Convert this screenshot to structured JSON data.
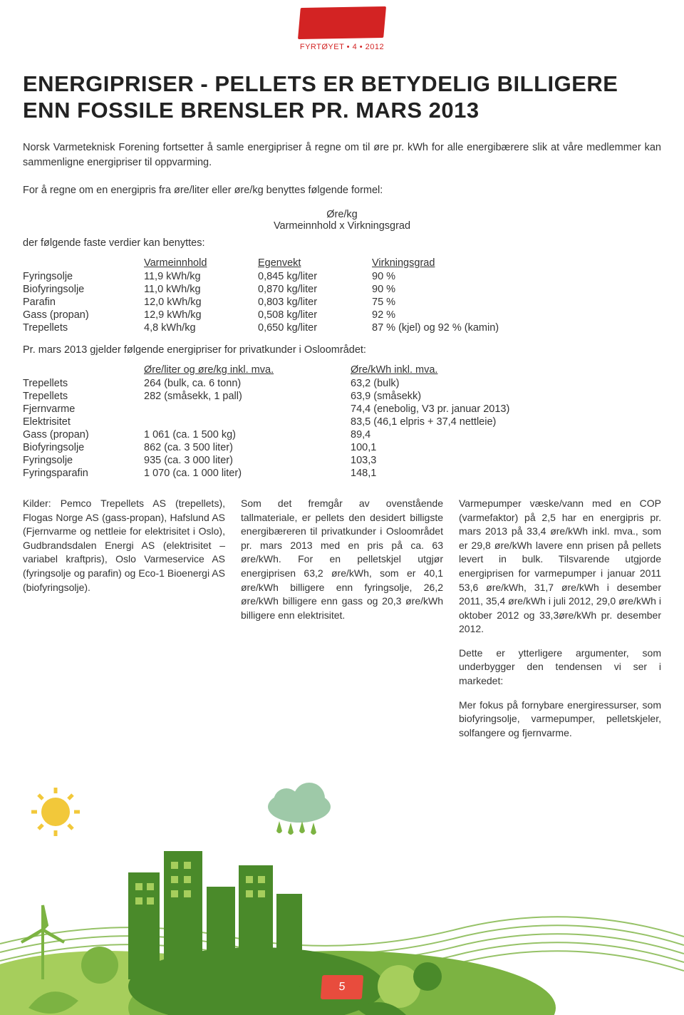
{
  "header": {
    "sub": "FYRTØYET • 4 • 2012"
  },
  "title": "ENERGIPRISER - PELLETS ER BETYDELIG BILLIGERE ENN FOSSILE BRENSLER PR. MARS 2013",
  "intro": "Norsk Varmeteknisk Forening fortsetter å samle energipriser å regne om til øre pr. kWh for alle energibærere slik at våre medlemmer kan sammenligne energipriser til oppvarming.",
  "formula_intro": "For å regne om en energipris fra øre/liter eller øre/kg benyttes følgende formel:",
  "formula_top": "Øre/kg",
  "formula_bottom": "Varmeinnhold x Virkningsgrad",
  "values_intro": "der følgende faste verdier kan benyttes:",
  "table1": {
    "headers": [
      "",
      "Varmeinnhold",
      "Egenvekt",
      "Virkningsgrad"
    ],
    "rows": [
      [
        "Fyringsolje",
        "11,9 kWh/kg",
        "0,845 kg/liter",
        "90 %"
      ],
      [
        "Biofyringsolje",
        "11,0 kWh/kg",
        "0,870 kg/liter",
        "90 %"
      ],
      [
        "Parafin",
        "12,0 kWh/kg",
        "0,803 kg/liter",
        "75 %"
      ],
      [
        "Gass (propan)",
        "12,9 kWh/kg",
        "0,508 kg/liter",
        "92 %"
      ],
      [
        "Trepellets",
        "4,8 kWh/kg",
        "0,650 kg/liter",
        "87 % (kjel) og 92 % (kamin)"
      ]
    ]
  },
  "table2_intro": "Pr. mars 2013 gjelder følgende energipriser for privatkunder i Osloområdet:",
  "table2": {
    "headers": [
      "",
      "Øre/liter og øre/kg inkl. mva.",
      "Øre/kWh inkl. mva."
    ],
    "rows": [
      [
        "Trepellets",
        "264 (bulk, ca. 6 tonn)",
        "63,2 (bulk)"
      ],
      [
        "Trepellets",
        "282 (småsekk, 1 pall)",
        "63,9 (småsekk)"
      ],
      [
        "Fjernvarme",
        "",
        "74,4 (enebolig, V3 pr. januar 2013)"
      ],
      [
        "Elektrisitet",
        "",
        "83,5 (46,1 elpris + 37,4 nettleie)"
      ],
      [
        "Gass (propan)",
        "1 061 (ca. 1 500 kg)",
        "89,4"
      ],
      [
        "Biofyringsolje",
        "862 (ca. 3 500 liter)",
        "100,1"
      ],
      [
        "Fyringsolje",
        "935 (ca. 3 000 liter)",
        "103,3"
      ],
      [
        "Fyringsparafin",
        "1 070 (ca. 1 000 liter)",
        "148,1"
      ]
    ]
  },
  "columns": {
    "col1": "Kilder: Pemco Trepellets AS (trepellets), Flogas Norge AS (gass-propan), Hafslund AS (Fjernvarme og nettleie for elektrisitet i Oslo), Gudbrandsdalen Energi AS (elektrisitet – variabel kraftpris), Oslo Varmeservice AS (fyringsolje og parafin) og Eco-1 Bioenergi AS (biofyringsolje).",
    "col2": "Som det fremgår av ovenstående tallmateriale, er pellets den desidert billigste energibæreren til privatkunder i Osloområdet pr. mars 2013 med en pris på ca. 63 øre/kWh. For en pelletskjel utgjør energiprisen 63,2 øre/kWh, som er 40,1 øre/kWh billigere enn fyringsolje, 26,2 øre/kWh billigere enn gass og 20,3 øre/kWh billigere enn elektrisitet.",
    "col3a": "Varmepumper væske/vann med en COP (varmefaktor) på 2,5 har en energipris pr. mars 2013 på 33,4 øre/kWh inkl. mva., som er 29,8 øre/kWh lavere enn prisen på pellets levert in bulk. Tilsvarende utgjorde energiprisen for varmepumper i januar 2011 53,6 øre/kWh, 31,7 øre/kWh i desember 2011, 35,4 øre/kWh i juli 2012, 29,0 øre/kWh i oktober 2012 og 33,3øre/kWh pr. desember 2012.",
    "col3b": "Dette er ytterligere argumenter, som underbygger den tendensen vi ser i markedet:",
    "col3c": "Mer fokus på fornybare energiressurser, som biofyringsolje, varmepumper, pelletskjeler, solfangere og fjernvarme."
  },
  "page_number": "5",
  "colors": {
    "brand_red": "#d32323",
    "badge_orange": "#e84c3d",
    "green_dark": "#4a8a2a",
    "green_mid": "#7cb342",
    "green_light": "#a6ce5c",
    "sun": "#f2c83a",
    "cloud": "#9ec9a8",
    "text": "#333333"
  }
}
